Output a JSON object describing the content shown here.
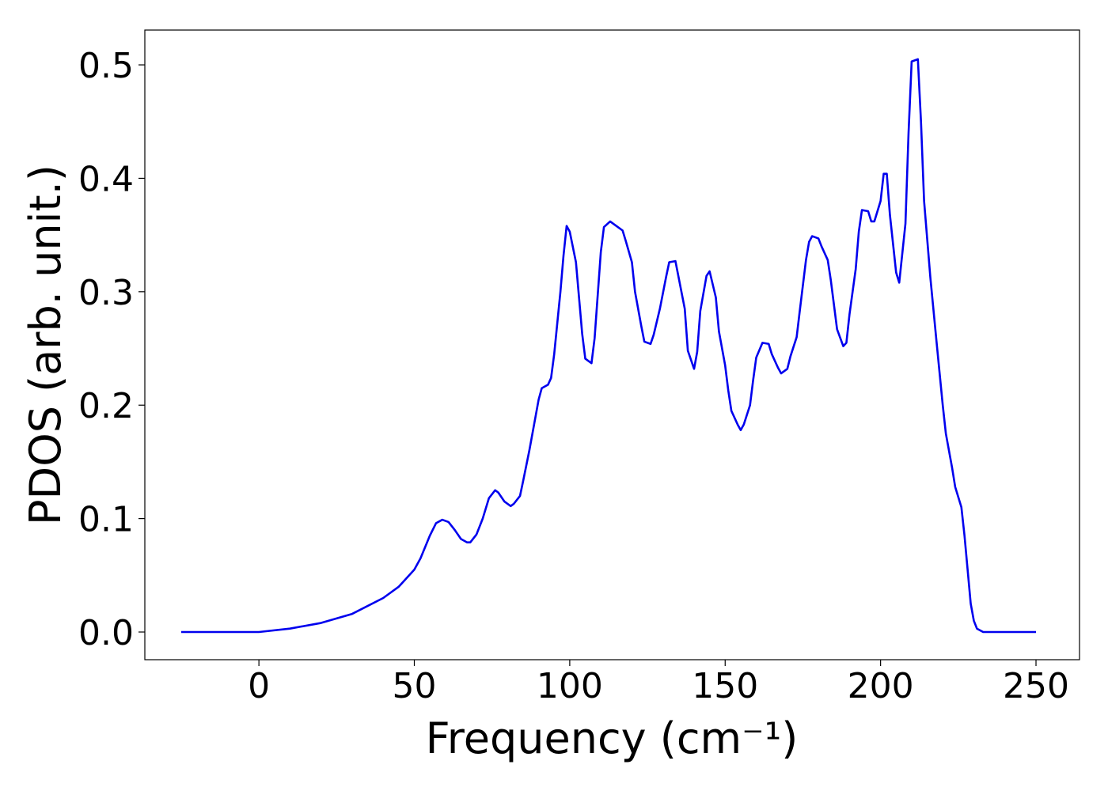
{
  "chart_data": {
    "type": "line",
    "xlabel": "Frequency (cm⁻¹)",
    "ylabel": "PDOS (arb. unit.)",
    "color": "#0000ee",
    "xlim": [
      -36.7,
      264.0
    ],
    "ylim": [
      -0.0244,
      0.5307
    ],
    "xticks": [
      0,
      50,
      100,
      150,
      200,
      250
    ],
    "yticks": [
      {
        "value": 0,
        "label": "0.0"
      },
      0.1,
      0.2,
      0.3,
      0.4,
      0.5
    ],
    "x": [
      -25,
      0,
      10,
      20,
      30,
      40,
      45,
      50,
      52,
      55,
      57,
      59,
      61,
      63,
      65,
      67,
      68,
      70,
      72,
      74,
      76,
      77,
      79,
      81,
      82,
      84,
      85,
      87,
      89,
      90,
      91,
      93,
      94,
      95,
      97,
      98,
      99,
      100,
      102,
      104,
      105,
      107,
      108,
      110,
      111,
      113,
      115,
      117,
      118,
      120,
      121,
      123,
      124,
      126,
      127,
      129,
      131,
      132,
      134,
      135,
      137,
      138,
      140,
      141,
      142,
      144,
      145,
      147,
      148,
      150,
      151,
      152,
      154,
      155,
      156,
      158,
      159,
      160,
      162,
      164,
      165,
      167,
      168,
      170,
      171,
      173,
      174,
      176,
      177,
      178,
      180,
      181,
      183,
      184,
      186,
      188,
      189,
      190,
      192,
      193,
      194,
      196,
      197,
      198,
      200,
      201,
      202,
      203,
      205,
      206,
      208,
      209,
      210,
      212,
      213,
      214,
      216,
      218,
      220,
      221,
      223,
      224,
      226,
      227,
      228,
      229,
      230,
      231,
      233,
      250
    ],
    "values": [
      0,
      0,
      0.003,
      0.008,
      0.016,
      0.03,
      0.04,
      0.055,
      0.065,
      0.085,
      0.096,
      0.099,
      0.097,
      0.09,
      0.082,
      0.079,
      0.079,
      0.086,
      0.1,
      0.118,
      0.125,
      0.123,
      0.115,
      0.111,
      0.113,
      0.12,
      0.133,
      0.16,
      0.19,
      0.205,
      0.215,
      0.218,
      0.224,
      0.245,
      0.3,
      0.332,
      0.358,
      0.353,
      0.326,
      0.263,
      0.241,
      0.237,
      0.259,
      0.335,
      0.357,
      0.362,
      0.358,
      0.354,
      0.345,
      0.326,
      0.3,
      0.27,
      0.256,
      0.254,
      0.262,
      0.285,
      0.313,
      0.326,
      0.327,
      0.313,
      0.285,
      0.248,
      0.232,
      0.247,
      0.283,
      0.314,
      0.318,
      0.295,
      0.265,
      0.235,
      0.213,
      0.195,
      0.183,
      0.178,
      0.183,
      0.2,
      0.222,
      0.242,
      0.255,
      0.254,
      0.245,
      0.233,
      0.228,
      0.232,
      0.243,
      0.26,
      0.283,
      0.328,
      0.344,
      0.349,
      0.347,
      0.34,
      0.328,
      0.31,
      0.267,
      0.252,
      0.255,
      0.28,
      0.32,
      0.353,
      0.372,
      0.371,
      0.362,
      0.362,
      0.38,
      0.404,
      0.404,
      0.368,
      0.317,
      0.308,
      0.36,
      0.44,
      0.503,
      0.505,
      0.45,
      0.38,
      0.313,
      0.256,
      0.2,
      0.175,
      0.145,
      0.128,
      0.11,
      0.085,
      0.055,
      0.025,
      0.01,
      0.003,
      0,
      0
    ]
  }
}
